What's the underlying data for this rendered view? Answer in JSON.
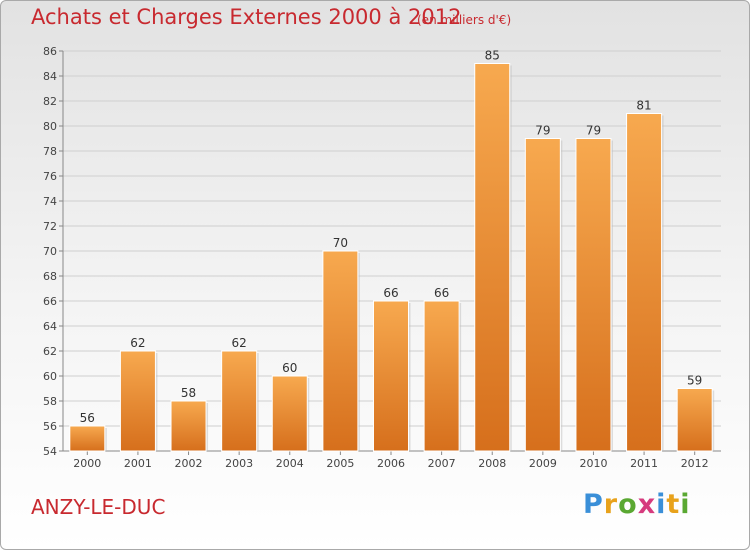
{
  "title": "Achats et Charges Externes 2000 à 2012",
  "subtitle": "(en milliers d'€)",
  "commune": "ANZY-LE-DUC",
  "logo": {
    "letters": [
      "P",
      "r",
      "o",
      "x",
      "i",
      "t",
      "i"
    ],
    "colors": [
      "#3a8fd8",
      "#e8a21b",
      "#5aa832",
      "#d63b7e",
      "#3a8fd8",
      "#e8a21b",
      "#5aa832"
    ]
  },
  "colors": {
    "bar_top": "#f7a94f",
    "bar_bottom": "#d66f1c",
    "text_accent": "#c8292f",
    "grid": "#cfcfcf"
  },
  "chart_data": {
    "type": "bar",
    "title": "Achats et Charges Externes 2000 à 2012",
    "subtitle": "(en milliers d'€)",
    "categories": [
      "2000",
      "2001",
      "2002",
      "2003",
      "2004",
      "2005",
      "2006",
      "2007",
      "2008",
      "2009",
      "2010",
      "2011",
      "2012"
    ],
    "values": [
      56,
      62,
      58,
      62,
      60,
      70,
      66,
      66,
      85,
      79,
      79,
      81,
      59
    ],
    "ylim": [
      54,
      86
    ],
    "yticks": [
      54,
      56,
      58,
      60,
      62,
      64,
      66,
      68,
      70,
      72,
      74,
      76,
      78,
      80,
      82,
      84,
      86
    ],
    "grid": true,
    "data_labels": true
  }
}
